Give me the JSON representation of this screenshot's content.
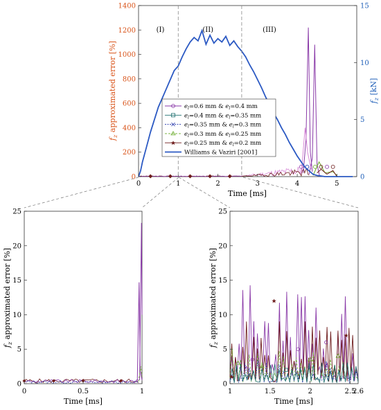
{
  "colors": {
    "left_axis": "#d9541a",
    "right_axis": "#1f5fb8",
    "williams": "#2b59c3",
    "purple": "#8a3aa8",
    "teal": "#1d6e6e",
    "blue_dot": "#2233aa",
    "green": "#6aaa2a",
    "maroon": "#6e1c1c",
    "pink_light": "#d88ad8"
  },
  "chart_data": [
    {
      "id": "top",
      "type": "line",
      "xlabel": "Time [ms]",
      "ylabel_left": "f_z approximated error [%]",
      "ylabel_right": "f_z [kN]",
      "xlim": [
        0,
        5.5
      ],
      "ylim_left": [
        0,
        1400
      ],
      "ylim_right": [
        0,
        15
      ],
      "xticks": [
        "0",
        "1",
        "2",
        "3",
        "4",
        "5"
      ],
      "yticks_left": [
        "0",
        "200",
        "400",
        "600",
        "800",
        "1000",
        "1200",
        "1400"
      ],
      "yticks_right": [
        "0",
        "5",
        "10",
        "15"
      ],
      "regions": [
        "(I)",
        "(II)",
        "(III)"
      ],
      "region_boundaries": [
        1,
        2.6
      ],
      "legend": {
        "position": "center",
        "entries": [
          {
            "prefix": "e",
            "sub": "l",
            "text1": "=0.6 mm & ",
            "prefix2": "e",
            "sub2": "l",
            "text2": "=0.4 mm",
            "series": "s1"
          },
          {
            "prefix": "e",
            "sub": "l",
            "text1": "=0.4 mm & ",
            "prefix2": "e",
            "sub2": "l",
            "text2": "=0.35 mm",
            "series": "s2"
          },
          {
            "prefix": "e",
            "sub": "l",
            "text1": "=0.35 mm & ",
            "prefix2": "e",
            "sub2": "l",
            "text2": "=0.3 mm",
            "series": "s3"
          },
          {
            "prefix": "e",
            "sub": "l",
            "text1": "=0.3 mm & ",
            "prefix2": "e",
            "sub2": "l",
            "text2": "=0.25 mm",
            "series": "s4"
          },
          {
            "prefix": "e",
            "sub": "l",
            "text1": "=0.25 mm & ",
            "prefix2": "e",
            "sub2": "l",
            "text2": "=0.2 mm",
            "series": "s5"
          },
          {
            "text": "Williams & Vaziri [2001]",
            "series": "w"
          }
        ]
      },
      "williams_series": {
        "axis": "right",
        "x": [
          0,
          0.05,
          0.1,
          0.2,
          0.3,
          0.4,
          0.5,
          0.6,
          0.7,
          0.8,
          0.9,
          1.0,
          1.1,
          1.2,
          1.3,
          1.4,
          1.5,
          1.6,
          1.7,
          1.8,
          1.9,
          2.0,
          2.1,
          2.2,
          2.3,
          2.4,
          2.5,
          2.6,
          2.7,
          2.8,
          2.9,
          3.0,
          3.1,
          3.2,
          3.3,
          3.4,
          3.5,
          3.6,
          3.7,
          3.8,
          3.9,
          4.0,
          4.1,
          4.2,
          4.3,
          4.4,
          4.5,
          4.6,
          4.7,
          4.8,
          5.0,
          5.4
        ],
        "y": [
          0,
          0.5,
          1.3,
          2.6,
          3.9,
          5.0,
          6.1,
          6.9,
          7.7,
          8.5,
          9.3,
          9.7,
          10.5,
          11.2,
          11.8,
          12.2,
          11.9,
          12.8,
          11.6,
          12.4,
          11.7,
          12.1,
          11.8,
          12.3,
          11.5,
          11.9,
          11.4,
          11.0,
          10.5,
          9.8,
          9.2,
          8.5,
          7.8,
          7.0,
          6.3,
          5.6,
          5.0,
          4.3,
          3.7,
          3.0,
          2.4,
          1.8,
          1.3,
          0.8,
          0.5,
          0.2,
          0.1,
          0.05,
          0,
          0,
          0,
          0
        ]
      }
    },
    {
      "id": "bottom-left",
      "type": "line",
      "xlabel": "Time [ms]",
      "ylabel": "f_z approximated error [%]",
      "xlim": [
        0,
        1
      ],
      "ylim": [
        0,
        25
      ],
      "xticks": [
        "0",
        "0.5",
        "1"
      ],
      "yticks": [
        "0",
        "5",
        "10",
        "15",
        "20",
        "25"
      ]
    },
    {
      "id": "bottom-right",
      "type": "line",
      "xlabel": "Time [ms]",
      "ylabel": "f_z approximated error [%]",
      "xlim": [
        1,
        2.6
      ],
      "ylim": [
        0,
        25
      ],
      "xticks": [
        "1",
        "1.5",
        "2",
        "2.5"
      ],
      "yticks": [
        "0",
        "5",
        "10",
        "15",
        "20",
        "25"
      ],
      "xtick_extra": "2.6"
    }
  ]
}
